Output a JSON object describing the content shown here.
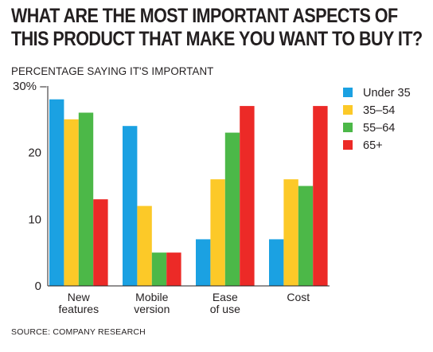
{
  "title_lines": [
    "WHAT ARE THE MOST IMPORTANT ASPECTS OF",
    "THIS PRODUCT THAT MAKE YOU WANT TO BUY IT?"
  ],
  "source": "SOURCE: COMPANY RESEARCH",
  "chart_data": {
    "type": "bar",
    "title": "WHAT ARE THE MOST IMPORTANT ASPECTS OF THIS PRODUCT THAT MAKE YOU WANT TO BUY IT?",
    "ylabel": "PERCENTAGE SAYING IT'S IMPORTANT",
    "xlabel": "",
    "categories": [
      [
        "New",
        "features"
      ],
      [
        "Mobile",
        "version"
      ],
      [
        "Ease",
        "of use"
      ],
      [
        "Cost"
      ]
    ],
    "series": [
      {
        "name": "Under 35",
        "color": "#1ba1e2",
        "values": [
          28,
          24,
          7,
          7
        ]
      },
      {
        "name": "35–54",
        "color": "#fcc928",
        "values": [
          25,
          12,
          16,
          16
        ]
      },
      {
        "name": "55–64",
        "color": "#4cb848",
        "values": [
          26,
          5,
          23,
          15
        ]
      },
      {
        "name": "65+",
        "color": "#ec2a27",
        "values": [
          13,
          5,
          27,
          27
        ]
      }
    ],
    "ylim": [
      0,
      30
    ],
    "yticks": [
      {
        "value": 0,
        "label": "0"
      },
      {
        "value": 10,
        "label": "10"
      },
      {
        "value": 20,
        "label": "20"
      },
      {
        "value": 30,
        "label": "30% –"
      }
    ],
    "grid": false,
    "legend": "right"
  }
}
